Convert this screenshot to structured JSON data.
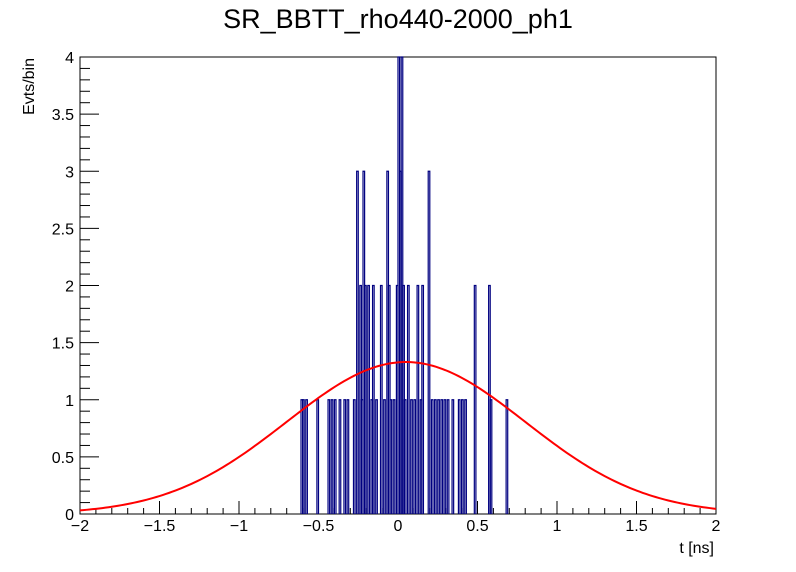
{
  "chart_data": {
    "type": "histogram",
    "title": "SR_BBTT_rho440-2000_ph1",
    "xlabel": "t [ns]",
    "ylabel": "Evts/bin",
    "xlim": [
      -2,
      2
    ],
    "ylim": [
      0,
      4
    ],
    "x_ticks": [
      -2,
      -1.5,
      -1,
      -0.5,
      0,
      0.5,
      1,
      1.5,
      2
    ],
    "x_tick_labels": [
      "−2",
      "−1.5",
      "−1",
      "−0.5",
      "0",
      "0.5",
      "1",
      "1.5",
      "2"
    ],
    "y_ticks": [
      0,
      0.5,
      1,
      1.5,
      2,
      2.5,
      3,
      3.5,
      4
    ],
    "y_tick_labels": [
      "0",
      "0.5",
      "1",
      "1.5",
      "2",
      "2.5",
      "3",
      "3.5",
      "4"
    ],
    "grid": false,
    "histogram": {
      "name": "",
      "color": "#000080",
      "bin_width": 0.01,
      "bins": [
        {
          "x": -0.61,
          "count": 1
        },
        {
          "x": -0.6,
          "count": 1
        },
        {
          "x": -0.58,
          "count": 1
        },
        {
          "x": -0.51,
          "count": 1
        },
        {
          "x": -0.44,
          "count": 1
        },
        {
          "x": -0.42,
          "count": 1
        },
        {
          "x": -0.4,
          "count": 1
        },
        {
          "x": -0.37,
          "count": 1
        },
        {
          "x": -0.34,
          "count": 1
        },
        {
          "x": -0.32,
          "count": 1
        },
        {
          "x": -0.28,
          "count": 1
        },
        {
          "x": -0.26,
          "count": 3
        },
        {
          "x": -0.24,
          "count": 2
        },
        {
          "x": -0.23,
          "count": 1
        },
        {
          "x": -0.22,
          "count": 3
        },
        {
          "x": -0.21,
          "count": 2
        },
        {
          "x": -0.19,
          "count": 2
        },
        {
          "x": -0.17,
          "count": 1
        },
        {
          "x": -0.16,
          "count": 2
        },
        {
          "x": -0.14,
          "count": 1
        },
        {
          "x": -0.11,
          "count": 2
        },
        {
          "x": -0.09,
          "count": 1
        },
        {
          "x": -0.07,
          "count": 3
        },
        {
          "x": -0.06,
          "count": 2
        },
        {
          "x": -0.05,
          "count": 1
        },
        {
          "x": -0.03,
          "count": 1
        },
        {
          "x": -0.01,
          "count": 2
        },
        {
          "x": 0.0,
          "count": 4
        },
        {
          "x": 0.01,
          "count": 3
        },
        {
          "x": 0.02,
          "count": 4
        },
        {
          "x": 0.03,
          "count": 2
        },
        {
          "x": 0.04,
          "count": 1
        },
        {
          "x": 0.06,
          "count": 2
        },
        {
          "x": 0.08,
          "count": 1
        },
        {
          "x": 0.1,
          "count": 1
        },
        {
          "x": 0.12,
          "count": 2
        },
        {
          "x": 0.14,
          "count": 1
        },
        {
          "x": 0.15,
          "count": 2
        },
        {
          "x": 0.19,
          "count": 3
        },
        {
          "x": 0.21,
          "count": 1
        },
        {
          "x": 0.23,
          "count": 1
        },
        {
          "x": 0.25,
          "count": 1
        },
        {
          "x": 0.27,
          "count": 1
        },
        {
          "x": 0.29,
          "count": 1
        },
        {
          "x": 0.31,
          "count": 1
        },
        {
          "x": 0.34,
          "count": 1
        },
        {
          "x": 0.38,
          "count": 1
        },
        {
          "x": 0.4,
          "count": 1
        },
        {
          "x": 0.42,
          "count": 1
        },
        {
          "x": 0.48,
          "count": 2
        },
        {
          "x": 0.57,
          "count": 2
        },
        {
          "x": 0.58,
          "count": 1
        },
        {
          "x": 0.68,
          "count": 1
        }
      ]
    },
    "fit_curve": {
      "name": "",
      "type": "gaussian",
      "color": "#ff0000",
      "amplitude": 1.33,
      "mean": 0.05,
      "sigma": 0.75,
      "x_range": [
        -2,
        2
      ]
    }
  }
}
